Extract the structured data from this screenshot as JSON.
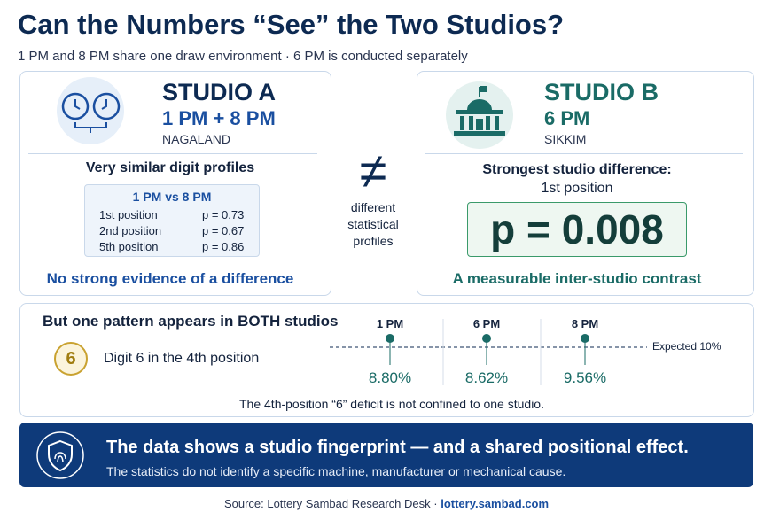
{
  "header": {
    "title": "Can the Numbers “See” the Two Studios?",
    "subtitle": "1 PM and 8 PM share one draw environment · 6 PM is conducted separately"
  },
  "studio_a": {
    "name": "STUDIO A",
    "times": "1 PM + 8 PM",
    "location": "NAGALAND",
    "heading": "Very similar digit profiles",
    "table": {
      "title": "1 PM vs 8 PM",
      "rows": [
        [
          "1st position",
          "p = 0.73"
        ],
        [
          "2nd position",
          "p = 0.67"
        ],
        [
          "5th position",
          "p = 0.86"
        ]
      ]
    },
    "conclusion": "No strong evidence of a difference"
  },
  "middle": {
    "symbol": "≠",
    "caption": [
      "different",
      "statistical",
      "profiles"
    ]
  },
  "studio_b": {
    "name": "STUDIO B",
    "times": "6 PM",
    "location": "SIKKIM",
    "heading": [
      "Strongest studio difference:",
      "1st position"
    ],
    "stat": "p = 0.008",
    "conclusion": "A measurable inter-studio contrast"
  },
  "pattern": {
    "heading": "But one pattern appears in BOTH studios",
    "badge": "6",
    "label": "Digit 6 in the 4th position",
    "columns": [
      {
        "time": "1 PM",
        "value": "8.80%"
      },
      {
        "time": "6 PM",
        "value": "8.62%"
      },
      {
        "time": "8 PM",
        "value": "9.56%"
      }
    ],
    "expected": "Expected 10%",
    "footnote": "The 4th-position “6” deficit is not confined to one studio."
  },
  "banner": {
    "title": "The data shows a studio fingerprint — and a shared positional effect.",
    "text": "The statistics do not identify a specific machine, manufacturer or mechanical cause."
  },
  "footer": {
    "source": "Source: Lottery Sambad Research Desk",
    "separator": "·",
    "link": "lottery.sambad.com"
  }
}
